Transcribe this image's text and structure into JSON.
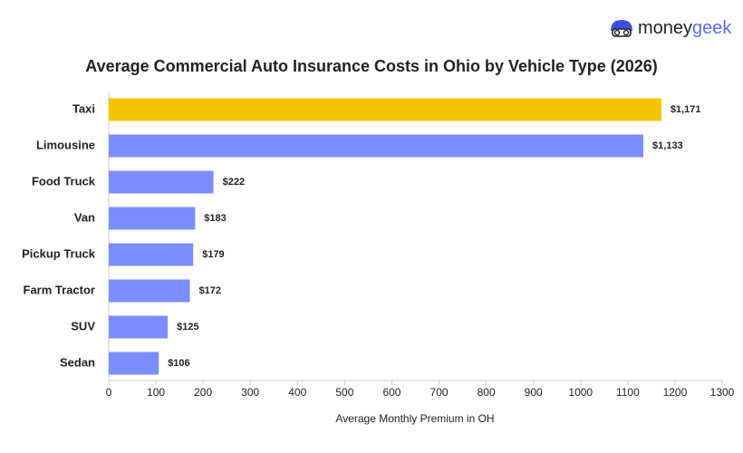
{
  "logo": {
    "part1": "money",
    "part2": "geek"
  },
  "chart_data": {
    "type": "hbar",
    "title": "Average Commercial Auto Insurance Costs in Ohio by Vehicle Type (2026)",
    "x_label": "Average Monthly Premium in OH",
    "categories": [
      "Taxi",
      "Limousine",
      "Food Truck",
      "Van",
      "Pickup Truck",
      "Farm Tractor",
      "SUV",
      "Sedan"
    ],
    "values": [
      1171,
      1133,
      222,
      183,
      179,
      172,
      125,
      106
    ],
    "value_labels": [
      "$1,171",
      "$1,133",
      "$222",
      "$183",
      "$179",
      "$172",
      "$125",
      "$106"
    ],
    "colors": [
      "#f5c400",
      "#7b8cff",
      "#7b8cff",
      "#7b8cff",
      "#7b8cff",
      "#7b8cff",
      "#7b8cff",
      "#7b8cff"
    ],
    "xlim": [
      0,
      1300
    ],
    "xticks": [
      0,
      100,
      200,
      300,
      400,
      500,
      600,
      700,
      800,
      900,
      1000,
      1100,
      1200,
      1300
    ]
  }
}
